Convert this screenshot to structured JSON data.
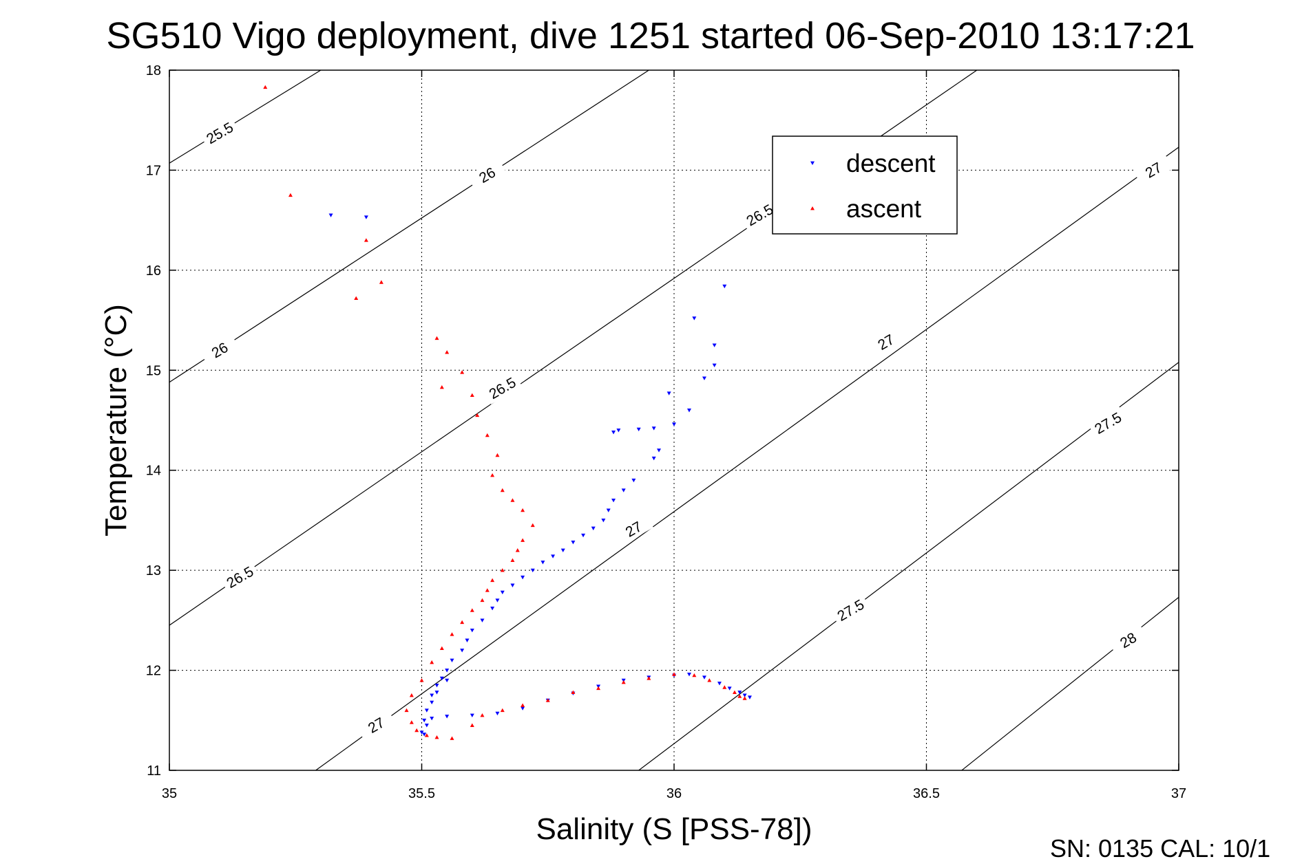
{
  "chart_data": {
    "type": "scatter",
    "title": "SG510 Vigo deployment, dive 1251 started 06-Sep-2010 13:17:21",
    "xlabel": "Salinity (S [PSS-78])",
    "ylabel": "Temperature (°C)",
    "xlim": [
      35,
      37
    ],
    "ylim": [
      11,
      18
    ],
    "xticks": [
      "35",
      "35.5",
      "36",
      "36.5",
      "37"
    ],
    "yticks": [
      "11",
      "12",
      "13",
      "14",
      "15",
      "16",
      "17",
      "18"
    ],
    "grid": true,
    "legend_position": "top-right",
    "footer": "SN: 0135  CAL: 10/1",
    "density_contours": [
      {
        "sigma": 25.5,
        "label": "25.5",
        "points": [
          [
            35.0,
            17.07
          ],
          [
            35.3,
            18.0
          ]
        ]
      },
      {
        "sigma": 26.0,
        "label": "26",
        "points": [
          [
            35.0,
            14.88
          ],
          [
            35.95,
            18.0
          ]
        ]
      },
      {
        "sigma": 26.5,
        "label": "26.5",
        "points": [
          [
            35.0,
            12.45
          ],
          [
            36.6,
            18.0
          ]
        ]
      },
      {
        "sigma": 27.0,
        "label": "27",
        "points": [
          [
            35.29,
            11.0
          ],
          [
            37.0,
            17.23
          ]
        ]
      },
      {
        "sigma": 27.5,
        "label": "27.5",
        "points": [
          [
            35.93,
            11.0
          ],
          [
            37.0,
            15.08
          ]
        ]
      },
      {
        "sigma": 28.0,
        "label": "28",
        "points": [
          [
            36.57,
            11.0
          ],
          [
            37.0,
            12.73
          ]
        ]
      }
    ],
    "contour_labels": [
      {
        "text": "25.5",
        "x": 35.1,
        "y": 17.37,
        "angle": -30
      },
      {
        "text": "26",
        "x": 35.63,
        "y": 16.95,
        "angle": -30
      },
      {
        "text": "26",
        "x": 35.1,
        "y": 15.2,
        "angle": -30
      },
      {
        "text": "26.5",
        "x": 35.66,
        "y": 14.82,
        "angle": -30
      },
      {
        "text": "26.5",
        "x": 36.17,
        "y": 16.55,
        "angle": -30
      },
      {
        "text": "26.5",
        "x": 35.14,
        "y": 12.93,
        "angle": -30
      },
      {
        "text": "27",
        "x": 35.92,
        "y": 13.41,
        "angle": -30
      },
      {
        "text": "27",
        "x": 36.42,
        "y": 15.28,
        "angle": -30
      },
      {
        "text": "27",
        "x": 36.95,
        "y": 17.0,
        "angle": -30
      },
      {
        "text": "27",
        "x": 35.41,
        "y": 11.45,
        "angle": -30
      },
      {
        "text": "27.5",
        "x": 36.35,
        "y": 12.6,
        "angle": -30
      },
      {
        "text": "27.5",
        "x": 36.86,
        "y": 14.47,
        "angle": -30
      },
      {
        "text": "28",
        "x": 36.9,
        "y": 12.3,
        "angle": -30
      }
    ],
    "series": [
      {
        "name": "descent",
        "color": "#0000ff",
        "marker": "triangle-down",
        "x": [
          35.32,
          35.39,
          36.1,
          36.04,
          36.08,
          36.08,
          36.06,
          35.99,
          36.03,
          36.0,
          35.96,
          35.93,
          35.89,
          35.88,
          35.97,
          35.96,
          35.92,
          35.9,
          35.88,
          35.87,
          35.86,
          35.84,
          35.82,
          35.8,
          35.78,
          35.76,
          35.74,
          35.72,
          35.7,
          35.68,
          35.66,
          35.65,
          35.64,
          35.62,
          35.6,
          35.59,
          35.58,
          35.56,
          35.55,
          35.54,
          35.53,
          35.52,
          35.51,
          35.505,
          35.5,
          35.505,
          35.51,
          35.52,
          35.55,
          35.6,
          35.65,
          35.7,
          35.75,
          35.8,
          35.85,
          35.9,
          35.95,
          36.0,
          36.03,
          36.06,
          36.09,
          36.11,
          36.13,
          36.14,
          36.15,
          35.52,
          35.53,
          35.55
        ],
        "y": [
          16.55,
          16.53,
          15.84,
          15.52,
          15.25,
          15.05,
          14.92,
          14.77,
          14.6,
          14.46,
          14.42,
          14.41,
          14.4,
          14.38,
          14.2,
          14.12,
          13.9,
          13.8,
          13.7,
          13.6,
          13.5,
          13.42,
          13.35,
          13.28,
          13.2,
          13.14,
          13.08,
          13.0,
          12.93,
          12.85,
          12.78,
          12.7,
          12.62,
          12.5,
          12.4,
          12.3,
          12.2,
          12.1,
          12.0,
          11.92,
          11.85,
          11.75,
          11.6,
          11.5,
          11.38,
          11.36,
          11.45,
          11.52,
          11.54,
          11.55,
          11.57,
          11.62,
          11.7,
          11.77,
          11.84,
          11.9,
          11.93,
          11.95,
          11.96,
          11.93,
          11.87,
          11.82,
          11.78,
          11.75,
          11.73,
          11.68,
          11.78,
          11.9
        ]
      },
      {
        "name": "ascent",
        "color": "#ff0000",
        "marker": "triangle-up",
        "x": [
          35.19,
          35.24,
          35.39,
          35.37,
          35.42,
          35.53,
          35.55,
          35.58,
          35.54,
          35.6,
          35.61,
          35.63,
          35.65,
          35.64,
          35.66,
          35.68,
          35.7,
          35.72,
          35.7,
          35.69,
          35.68,
          35.66,
          35.64,
          35.63,
          35.62,
          35.6,
          35.58,
          35.56,
          35.54,
          35.52,
          35.5,
          35.48,
          35.47,
          35.48,
          35.49,
          35.51,
          35.53,
          35.56,
          35.6,
          35.62,
          35.66,
          35.7,
          35.75,
          35.8,
          35.85,
          35.9,
          35.95,
          36.0,
          36.04,
          36.07,
          36.1,
          36.12,
          36.13,
          36.14
        ],
        "y": [
          17.83,
          16.75,
          16.3,
          15.72,
          15.88,
          15.32,
          15.18,
          14.98,
          14.83,
          14.75,
          14.55,
          14.35,
          14.15,
          13.95,
          13.8,
          13.7,
          13.6,
          13.45,
          13.3,
          13.2,
          13.1,
          13.0,
          12.9,
          12.8,
          12.7,
          12.6,
          12.48,
          12.36,
          12.22,
          12.08,
          11.9,
          11.75,
          11.6,
          11.48,
          11.4,
          11.35,
          11.33,
          11.32,
          11.45,
          11.55,
          11.6,
          11.65,
          11.7,
          11.78,
          11.82,
          11.88,
          11.92,
          11.96,
          11.95,
          11.9,
          11.83,
          11.78,
          11.74,
          11.72
        ]
      }
    ]
  }
}
